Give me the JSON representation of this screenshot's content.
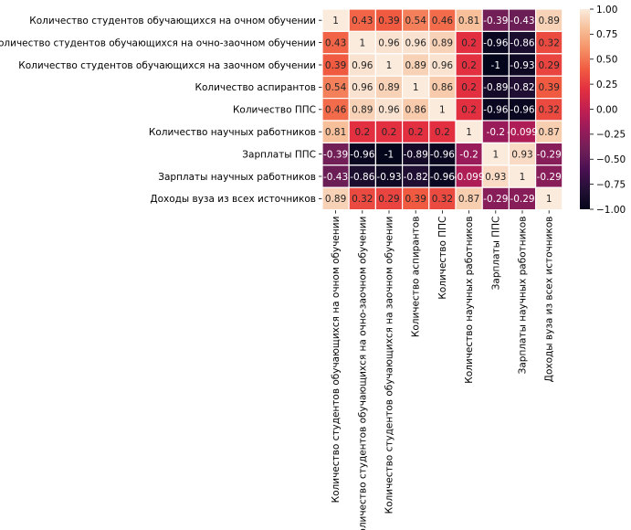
{
  "chart_data": {
    "type": "heatmap",
    "title": "",
    "xlabel": "",
    "ylabel": "",
    "labels": [
      "Количество студентов обучающихся на очном обучении",
      "Количество студентов обучающихся на очно-заочном обучении",
      "Количество студентов обучающихся на заочном обучении",
      "Количество аспирантов",
      "Количество ППС",
      "Количество научных работников",
      "Зарплаты ППС",
      "Зарплаты научных работников",
      "Доходы вуза из всех источников"
    ],
    "values": [
      [
        1,
        0.43,
        0.39,
        0.54,
        0.46,
        0.81,
        -0.39,
        -0.43,
        0.89
      ],
      [
        0.43,
        1,
        0.96,
        0.96,
        0.89,
        0.2,
        -0.96,
        -0.86,
        0.32
      ],
      [
        0.39,
        0.96,
        1,
        0.89,
        0.96,
        0.2,
        -1,
        -0.93,
        0.29
      ],
      [
        0.54,
        0.96,
        0.89,
        1,
        0.86,
        0.2,
        -0.89,
        -0.82,
        0.39
      ],
      [
        0.46,
        0.89,
        0.96,
        0.86,
        1,
        0.2,
        -0.96,
        -0.96,
        0.32
      ],
      [
        0.81,
        0.2,
        0.2,
        0.2,
        0.2,
        1,
        -0.2,
        -0.099,
        0.87
      ],
      [
        -0.39,
        -0.96,
        -1,
        -0.89,
        -0.96,
        -0.2,
        1,
        0.93,
        -0.29
      ],
      [
        -0.43,
        -0.86,
        -0.93,
        -0.82,
        -0.96,
        -0.099,
        0.93,
        1,
        -0.29
      ],
      [
        0.89,
        0.32,
        0.29,
        0.39,
        0.32,
        0.87,
        -0.29,
        -0.29,
        1
      ]
    ],
    "annot": [
      [
        "1",
        "0.43",
        "0.39",
        "0.54",
        "0.46",
        "0.81",
        "-0.39",
        "-0.43",
        "0.89"
      ],
      [
        "0.43",
        "1",
        "0.96",
        "0.96",
        "0.89",
        "0.2",
        "-0.96",
        "-0.86",
        "0.32"
      ],
      [
        "0.39",
        "0.96",
        "1",
        "0.89",
        "0.96",
        "0.2",
        "-1",
        "-0.93",
        "0.29"
      ],
      [
        "0.54",
        "0.96",
        "0.89",
        "1",
        "0.86",
        "0.2",
        "-0.89",
        "-0.82",
        "0.39"
      ],
      [
        "0.46",
        "0.89",
        "0.96",
        "0.86",
        "1",
        "0.2",
        "-0.96",
        "-0.96",
        "0.32"
      ],
      [
        "0.81",
        "0.2",
        "0.2",
        "0.2",
        "0.2",
        "1",
        "-0.2",
        "-0.099",
        "0.87"
      ],
      [
        "-0.39",
        "-0.96",
        "-1",
        "-0.89",
        "-0.96",
        "-0.2",
        "1",
        "0.93",
        "-0.29"
      ],
      [
        "-0.43",
        "-0.86",
        "-0.93",
        "-0.82",
        "-0.96",
        "-0.099",
        "0.93",
        "1",
        "-0.29"
      ],
      [
        "0.89",
        "0.32",
        "0.29",
        "0.39",
        "0.32",
        "0.87",
        "-0.29",
        "-0.29",
        "1"
      ]
    ],
    "vmin": -1,
    "vmax": 1,
    "colorbar_ticks": [
      "1.00",
      "0.75",
      "0.50",
      "0.25",
      "0.00",
      "−0.25",
      "−0.50",
      "−0.75",
      "−1.00"
    ],
    "colorbar_tick_values": [
      1,
      0.75,
      0.5,
      0.25,
      0,
      -0.25,
      -0.5,
      -0.75,
      -1
    ],
    "colormap": "rocket",
    "grid_line_color": "#ffffff",
    "annot_dark_color": "#262626",
    "annot_light_color": "#ffffff"
  }
}
